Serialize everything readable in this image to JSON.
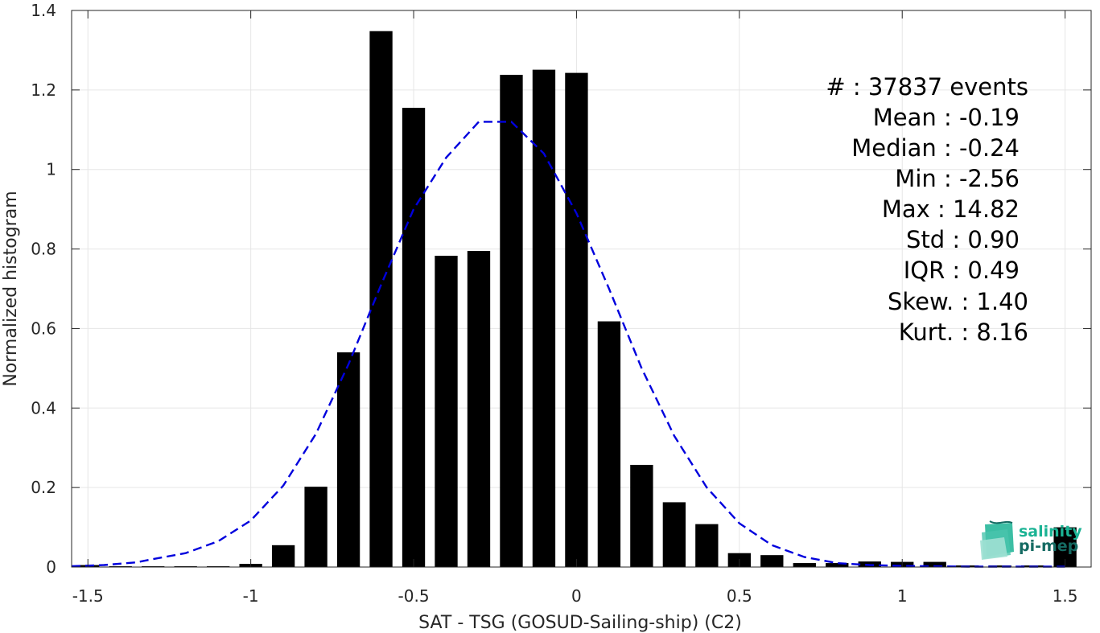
{
  "chart_data": {
    "type": "bar",
    "xlabel": "SAT - TSG (GOSUD-Sailing-ship) (C2)",
    "ylabel": "Normalized histogram",
    "xlim": [
      -1.55,
      1.58
    ],
    "ylim": [
      0,
      1.4
    ],
    "grid": true,
    "xticks": [
      -1.5,
      -1,
      -0.5,
      0,
      0.5,
      1,
      1.5
    ],
    "xtick_labels": [
      "-1.5",
      "-1",
      "-0.5",
      "0",
      "0.5",
      "1",
      "1.5"
    ],
    "yticks": [
      0,
      0.2,
      0.4,
      0.6,
      0.8,
      1,
      1.2,
      1.4
    ],
    "ytick_labels": [
      "0",
      "0.2",
      "0.4",
      "0.6",
      "0.8",
      "1",
      "1.2",
      "1.4"
    ],
    "bar_width": 0.07,
    "x": [
      -1.5,
      -1.4,
      -1.3,
      -1.2,
      -1.1,
      -1.0,
      -0.9,
      -0.8,
      -0.7,
      -0.6,
      -0.5,
      -0.4,
      -0.3,
      -0.2,
      -0.1,
      0.0,
      0.1,
      0.2,
      0.3,
      0.4,
      0.5,
      0.6,
      0.7,
      0.8,
      0.9,
      1.0,
      1.1,
      1.2,
      1.3,
      1.4,
      1.5
    ],
    "values": [
      0.005,
      0.002,
      0.002,
      0.002,
      0.002,
      0.008,
      0.055,
      0.202,
      0.54,
      1.348,
      1.155,
      0.783,
      0.795,
      1.238,
      1.251,
      1.243,
      0.618,
      0.257,
      0.163,
      0.108,
      0.035,
      0.03,
      0.01,
      0.01,
      0.014,
      0.013,
      0.013,
      0.004,
      0.004,
      0.004,
      0.1
    ],
    "series": [
      {
        "type": "line",
        "style": "dashed",
        "color": "#0000dd",
        "x": [
          -1.55,
          -1.45,
          -1.35,
          -1.3,
          -1.2,
          -1.1,
          -1.0,
          -0.9,
          -0.8,
          -0.7,
          -0.6,
          -0.5,
          -0.4,
          -0.3,
          -0.2,
          -0.1,
          0.0,
          0.1,
          0.2,
          0.3,
          0.4,
          0.5,
          0.6,
          0.7,
          0.8,
          0.9,
          1.0,
          1.1,
          1.2,
          1.3,
          1.4,
          1.5
        ],
        "y": [
          0.002,
          0.005,
          0.012,
          0.02,
          0.035,
          0.065,
          0.117,
          0.205,
          0.335,
          0.51,
          0.71,
          0.9,
          1.03,
          1.12,
          1.12,
          1.04,
          0.89,
          0.7,
          0.5,
          0.33,
          0.2,
          0.11,
          0.055,
          0.025,
          0.01,
          0.005,
          0.003,
          0.002,
          0.001,
          0.001,
          0.001,
          0.001
        ]
      }
    ],
    "bar_color": "#000000",
    "annotations": [
      "#  : 37837 events",
      "Mean : -0.19",
      "Median : -0.24",
      "Min : -2.56",
      "Max : 14.82",
      "Std : 0.90",
      "IQR : 0.49",
      "Skew. : 1.40",
      "Kurt. : 8.16"
    ]
  },
  "logo": {
    "line1": "salinity",
    "line2": "pi-mep",
    "color_top": "#1ab394",
    "color_bottom": "#156b63"
  }
}
